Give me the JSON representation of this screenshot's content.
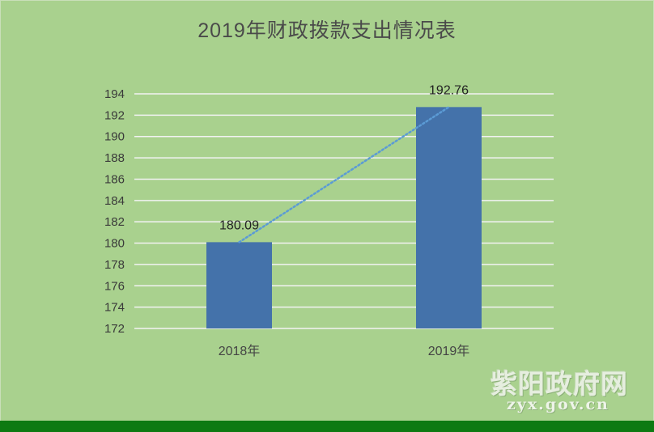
{
  "chart_data": {
    "type": "bar",
    "title": "2019年财政拨款支出情况表",
    "categories": [
      "2018年",
      "2019年"
    ],
    "values": [
      180.09,
      192.76
    ],
    "data_labels": [
      "180.09",
      "192.76"
    ],
    "ylim": [
      172,
      194
    ],
    "yticks": [
      172,
      174,
      176,
      178,
      180,
      182,
      184,
      186,
      188,
      190,
      192,
      194
    ],
    "grid": true,
    "trendline": "dotted linear",
    "xlabel": "",
    "ylabel": ""
  },
  "colors": {
    "background": "#a9d18e",
    "bar": "#4472aa",
    "trendline": "#5b9bd5",
    "gridline": "#f2f2f2",
    "footer_bar": "#0d7a12"
  },
  "watermark": {
    "name": "紫阳政府网",
    "url": "zyx.gov.cn"
  }
}
